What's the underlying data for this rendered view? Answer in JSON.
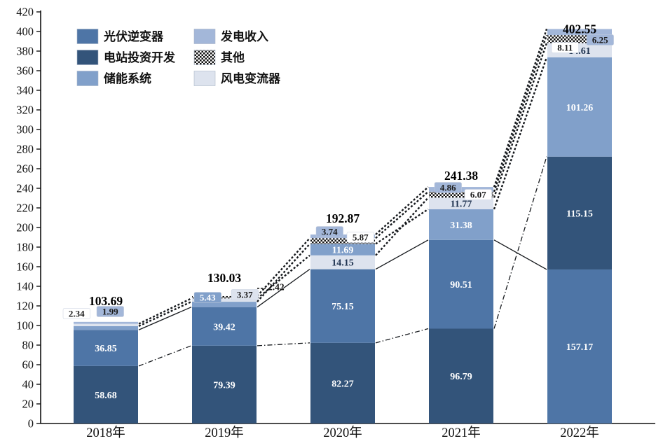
{
  "chart_data": {
    "type": "bar",
    "stacked": true,
    "title": "",
    "categories": [
      "2018年",
      "2019年",
      "2020年",
      "2021年",
      "2022年"
    ],
    "totals": [
      "103.69",
      "130.03",
      "192.87",
      "241.38",
      "402.55"
    ],
    "ylim": [
      0,
      420
    ],
    "ytick_step": 20,
    "yticks": [
      0,
      20,
      40,
      60,
      80,
      100,
      120,
      140,
      160,
      180,
      200,
      220,
      240,
      260,
      280,
      300,
      320,
      340,
      360,
      380,
      400,
      420
    ],
    "grid": false,
    "legend_position": "top-left-inside",
    "sort_note": "segments stacked largest-at-bottom within each bar",
    "series": [
      {
        "name": "光伏逆变器",
        "color": "#4e75a6",
        "values": [
          36.85,
          39.42,
          75.15,
          90.51,
          157.17
        ],
        "labels": [
          "36.85",
          "39.42",
          "75.15",
          "90.51",
          "157.17"
        ]
      },
      {
        "name": "电站投资开发",
        "color": "#33547a",
        "values": [
          58.68,
          79.39,
          82.27,
          96.79,
          115.15
        ],
        "labels": [
          "58.68",
          "79.39",
          "82.27",
          "96.79",
          "115.15"
        ]
      },
      {
        "name": "储能系统",
        "color": "#81a0ca",
        "values": [
          3.83,
          5.43,
          11.69,
          31.38,
          101.26
        ],
        "labels": [
          "",
          "5.43",
          "11.69",
          "31.38",
          "101.26"
        ]
      },
      {
        "name": "风电变流器",
        "color": "#dde3ee",
        "values": [
          2.34,
          3.37,
          14.15,
          11.77,
          14.61
        ],
        "labels": [
          "2.34",
          "3.37",
          "14.15",
          "11.77",
          "14.61"
        ]
      },
      {
        "name": "其他",
        "color": "checker-hatch",
        "values": [
          0,
          2.42,
          5.87,
          6.07,
          8.11
        ],
        "labels": [
          "",
          "2.42",
          "5.87",
          "6.07",
          "8.11"
        ]
      },
      {
        "name": "发电收入",
        "color": "#a3b7d9",
        "values": [
          1.99,
          0,
          3.74,
          4.86,
          6.25
        ],
        "labels": [
          "1.99",
          "",
          "3.74",
          "4.86",
          "6.25"
        ]
      }
    ],
    "legend": [
      {
        "label": "光伏逆变器",
        "series": 0
      },
      {
        "label": "发电收入",
        "series": 5
      },
      {
        "label": "电站投资开发",
        "series": 1
      },
      {
        "label": "其他",
        "series": 4
      },
      {
        "label": "储能系统",
        "series": 2
      },
      {
        "label": "风电变流器",
        "series": 3
      }
    ]
  },
  "colors": {
    "axis": "#111111",
    "text": "#111111",
    "chip_light_blue": "#a3b7d9",
    "chip_white": "#ffffff",
    "pale_text": "#1f3350",
    "background": "#ffffff"
  }
}
